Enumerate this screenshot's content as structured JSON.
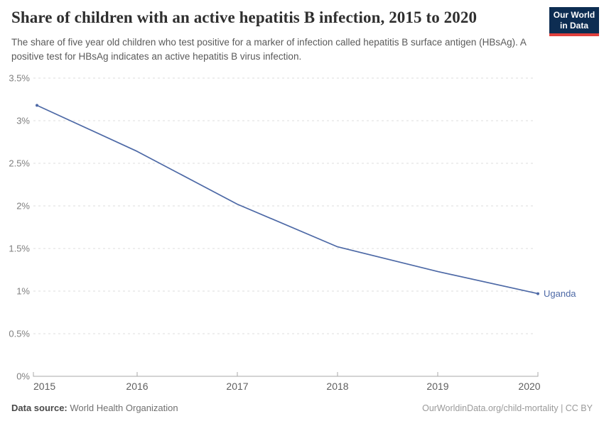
{
  "header": {
    "title": "Share of children with an active hepatitis B infection, 2015 to 2020",
    "subtitle": "The share of five year old children who test positive for a marker of infection called hepatitis B surface antigen (HBsAg). A positive test for HBsAg indicates an active hepatitis B virus infection.",
    "logo": {
      "line1": "Our World",
      "line2": "in Data",
      "bg_color": "#0d2d52",
      "accent_color": "#e0403d"
    }
  },
  "chart_data": {
    "type": "line",
    "title": "Share of children with an active hepatitis B infection, 2015 to 2020",
    "xlabel": "",
    "ylabel": "",
    "x": [
      2015,
      2016,
      2017,
      2018,
      2019,
      2020
    ],
    "series": [
      {
        "name": "Uganda",
        "values": [
          3.18,
          2.64,
          2.02,
          1.52,
          1.23,
          0.97
        ],
        "color": "#4d69a6"
      }
    ],
    "ylim": [
      0,
      3.5
    ],
    "ytick_step": 0.5,
    "ytick_labels": [
      "0%",
      "0.5%",
      "1%",
      "1.5%",
      "2%",
      "2.5%",
      "3%",
      "3.5%"
    ],
    "xtick_labels": [
      "2015",
      "2016",
      "2017",
      "2018",
      "2019",
      "2020"
    ],
    "grid": "horizontal-dashed",
    "legend_position": "end-of-line",
    "gridline_color": "#dcdcdc",
    "axis_color": "#a8a8a8"
  },
  "footer": {
    "datasource_label": "Data source:",
    "datasource_value": "World Health Organization",
    "attribution": "OurWorldinData.org/child-mortality | CC BY"
  }
}
